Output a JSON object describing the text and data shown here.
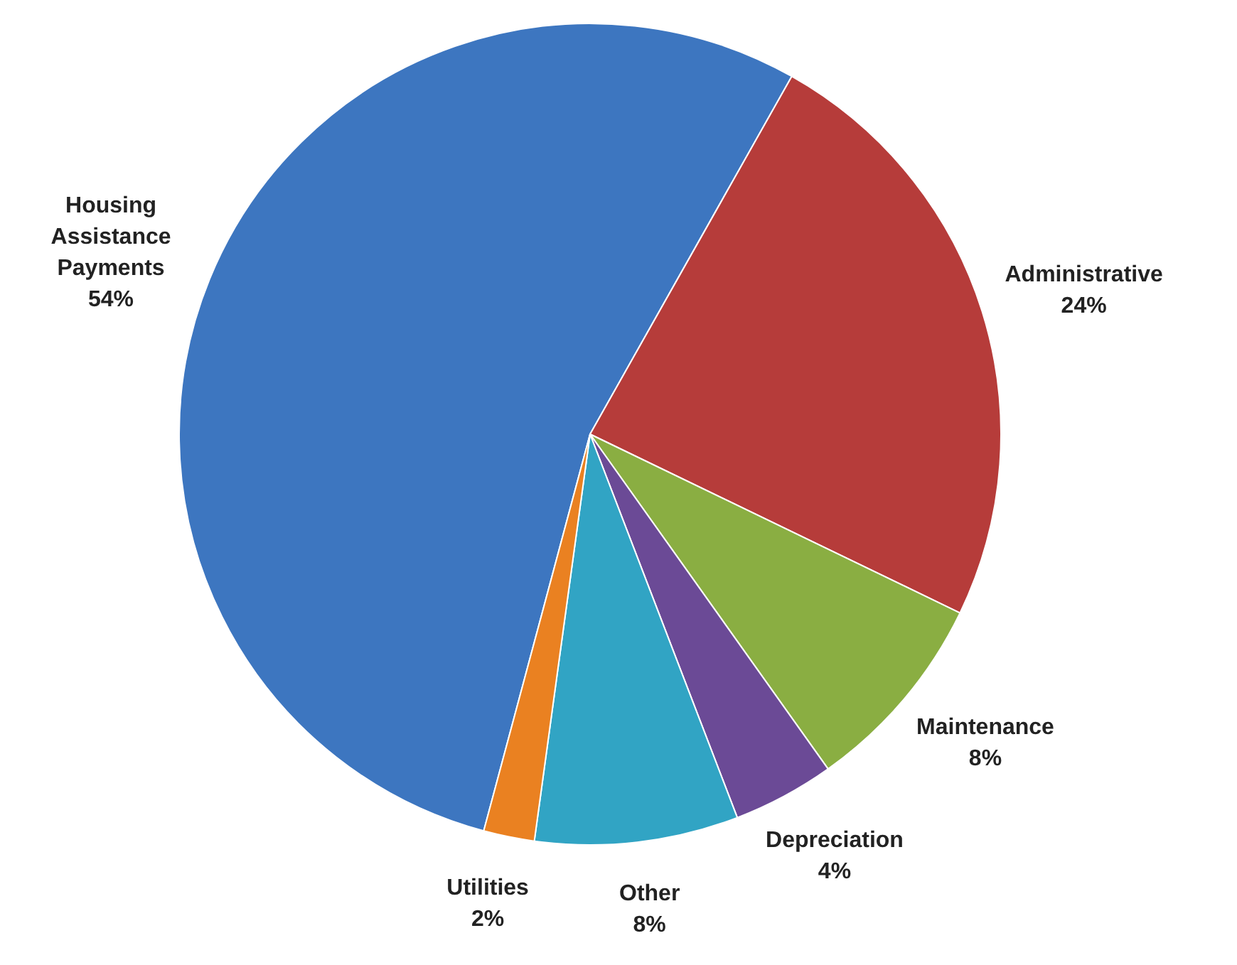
{
  "chart_data": {
    "type": "pie",
    "categories": [
      "Housing Assistance Payments",
      "Administrative",
      "Maintenance",
      "Depreciation",
      "Other",
      "Utilities"
    ],
    "values": [
      54,
      24,
      8,
      4,
      8,
      2
    ],
    "value_labels": [
      "54%",
      "24%",
      "8%",
      "4%",
      "8%",
      "2%"
    ],
    "colors": [
      "#3d76c0",
      "#b63c3a",
      "#8aae42",
      "#6b4a96",
      "#31a4c4",
      "#ea8121"
    ]
  }
}
